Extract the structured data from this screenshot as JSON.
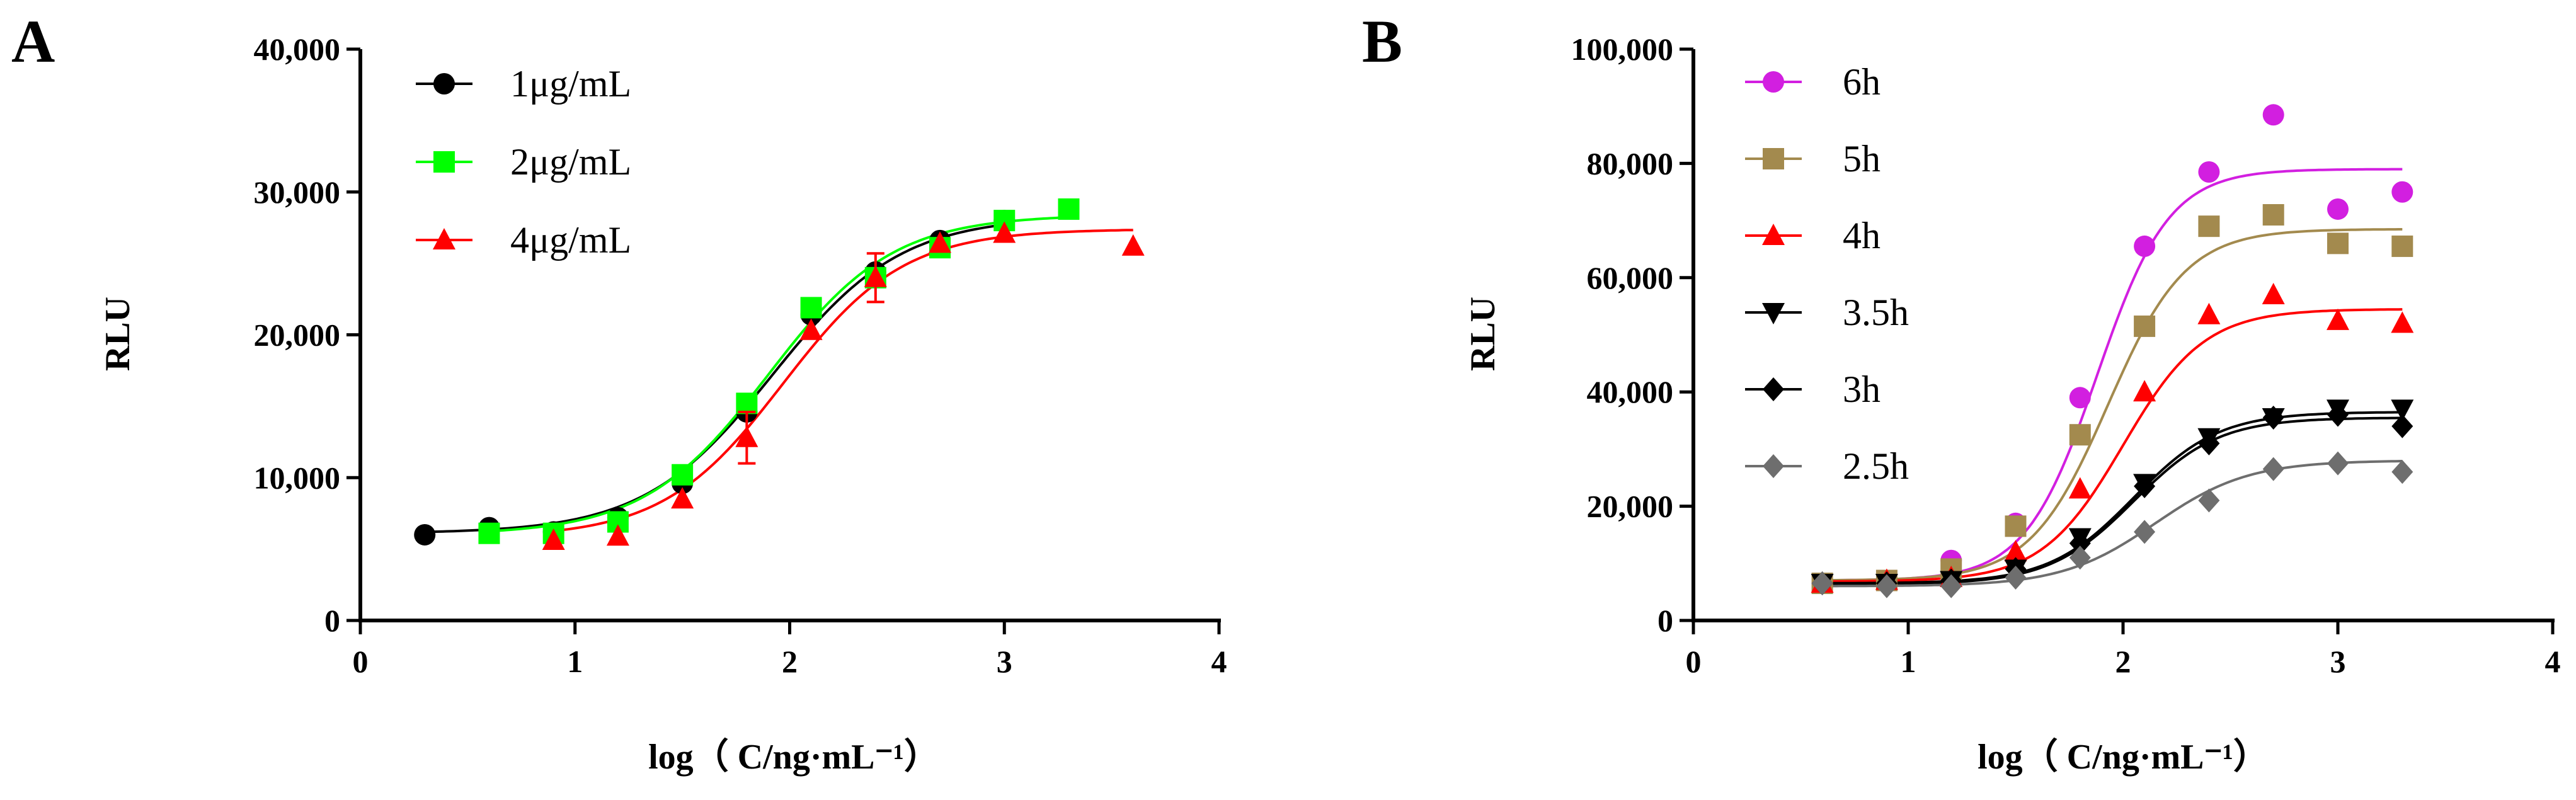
{
  "chart_data": [
    {
      "panel_label": "A",
      "type": "scatter",
      "xlabel": "log（ C/ng·mL⁻¹）",
      "ylabel": "RLU",
      "xlim": [
        0,
        4
      ],
      "ylim": [
        0,
        40000
      ],
      "xticks": [
        0,
        1,
        2,
        3,
        4
      ],
      "yticks": [
        0,
        10000,
        20000,
        30000,
        40000
      ],
      "xtick_labels": [
        "0",
        "1",
        "2",
        "3",
        "4"
      ],
      "ytick_labels": [
        "0",
        "10,000",
        "20,000",
        "30,000",
        "40,000"
      ],
      "legend_position": "top-left",
      "series": [
        {
          "name": "1μg/mL",
          "color": "#000000",
          "marker": "circle",
          "x": [
            0.3,
            0.6,
            0.9,
            1.2,
            1.5,
            1.8,
            2.1,
            2.4,
            2.7,
            3.0
          ],
          "values": [
            6000,
            6500,
            6200,
            7200,
            9600,
            14600,
            21400,
            24400,
            26600,
            28000
          ],
          "fit": {
            "bottom": 6100,
            "top": 28300,
            "logEC50": 1.92,
            "hill": 1.45
          }
        },
        {
          "name": "2μg/mL",
          "color": "#00ff00",
          "marker": "square",
          "x": [
            0.6,
            0.9,
            1.2,
            1.5,
            1.8,
            2.1,
            2.4,
            2.7,
            3.0,
            3.3
          ],
          "values": [
            6100,
            6100,
            6900,
            10200,
            15200,
            21900,
            24000,
            26100,
            28000,
            28800
          ],
          "fit": {
            "bottom": 6000,
            "top": 28400,
            "logEC50": 1.9,
            "hill": 1.5
          }
        },
        {
          "name": "4μg/mL",
          "color": "#ff0000",
          "marker": "triangle",
          "x": [
            0.9,
            1.2,
            1.5,
            1.8,
            2.1,
            2.4,
            2.7,
            3.0,
            3.6
          ],
          "values": [
            5600,
            5900,
            8500,
            12800,
            20300,
            24000,
            26400,
            27100,
            26200
          ],
          "errors": [
            0,
            0,
            0,
            1800,
            0,
            1700,
            0,
            0,
            0
          ],
          "fit": {
            "bottom": 5800,
            "top": 27400,
            "logEC50": 1.97,
            "hill": 1.55
          }
        }
      ]
    },
    {
      "panel_label": "B",
      "type": "scatter",
      "xlabel": "log（ C/ng·mL⁻¹）",
      "ylabel": "RLU",
      "xlim": [
        0,
        4
      ],
      "ylim": [
        0,
        100000
      ],
      "xticks": [
        0,
        1,
        2,
        3,
        4
      ],
      "yticks": [
        0,
        20000,
        40000,
        60000,
        80000,
        100000
      ],
      "xtick_labels": [
        "0",
        "1",
        "2",
        "3",
        "4"
      ],
      "ytick_labels": [
        "0",
        "20,000",
        "40,000",
        "60,000",
        "80,000",
        "100,000"
      ],
      "legend_position": "top-left",
      "series": [
        {
          "name": "6h",
          "color": "#d21fe0",
          "marker": "circle",
          "x": [
            0.6,
            0.9,
            1.2,
            1.5,
            1.8,
            2.1,
            2.4,
            2.7,
            3.0,
            3.3
          ],
          "values": [
            6500,
            7000,
            10500,
            17000,
            39000,
            65500,
            78500,
            88500,
            72000,
            75000
          ],
          "fit": {
            "bottom": 7000,
            "top": 79000,
            "logEC50": 1.88,
            "hill": 2.6
          }
        },
        {
          "name": "5h",
          "color": "#a38a4e",
          "marker": "square",
          "x": [
            0.6,
            0.9,
            1.2,
            1.5,
            1.8,
            2.1,
            2.4,
            2.7,
            3.0,
            3.3
          ],
          "values": [
            6500,
            7000,
            9000,
            16500,
            32500,
            51500,
            69000,
            71000,
            66000,
            65500
          ],
          "fit": {
            "bottom": 7000,
            "top": 68500,
            "logEC50": 1.93,
            "hill": 2.4
          }
        },
        {
          "name": "4h",
          "color": "#ff0000",
          "marker": "triangle",
          "x": [
            0.6,
            0.9,
            1.2,
            1.5,
            1.8,
            2.1,
            2.4,
            2.7,
            3.0,
            3.3
          ],
          "values": [
            6500,
            7000,
            7500,
            12000,
            23000,
            40000,
            53500,
            57000,
            52500,
            52000
          ],
          "fit": {
            "bottom": 6800,
            "top": 54500,
            "logEC50": 2.0,
            "hill": 2.3
          }
        },
        {
          "name": "3.5h",
          "color": "#000000",
          "marker": "triangle-down",
          "x": [
            0.6,
            0.9,
            1.2,
            1.5,
            1.8,
            2.1,
            2.4,
            2.7,
            3.0,
            3.3
          ],
          "values": [
            6500,
            6500,
            7000,
            9000,
            14500,
            24000,
            32000,
            35500,
            37000,
            37000
          ],
          "fit": {
            "bottom": 6500,
            "top": 36500,
            "logEC50": 2.05,
            "hill": 2.2
          }
        },
        {
          "name": "3h",
          "color": "#000000",
          "marker": "diamond",
          "x": [
            0.6,
            0.9,
            1.2,
            1.5,
            1.8,
            2.1,
            2.4,
            2.7,
            3.0,
            3.3
          ],
          "values": [
            6500,
            6500,
            7000,
            9000,
            13500,
            23500,
            31000,
            35500,
            36000,
            34000
          ],
          "fit": {
            "bottom": 6300,
            "top": 35500,
            "logEC50": 2.05,
            "hill": 2.2
          }
        },
        {
          "name": "2.5h",
          "color": "#6e6e6e",
          "marker": "diamond",
          "x": [
            0.6,
            0.9,
            1.2,
            1.5,
            1.8,
            2.1,
            2.4,
            2.7,
            3.0,
            3.3
          ],
          "values": [
            6500,
            6000,
            6000,
            7500,
            11000,
            15500,
            21000,
            26500,
            27500,
            26000
          ],
          "fit": {
            "bottom": 6000,
            "top": 28000,
            "logEC50": 2.15,
            "hill": 2.0
          }
        }
      ]
    }
  ]
}
